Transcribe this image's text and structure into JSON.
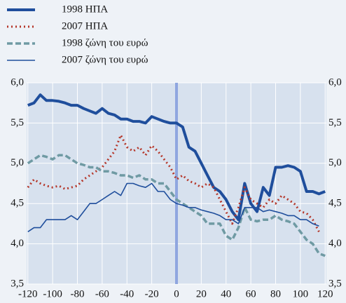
{
  "chart_data": {
    "type": "line",
    "x": [
      -120,
      -115,
      -110,
      -105,
      -100,
      -95,
      -90,
      -85,
      -80,
      -75,
      -70,
      -65,
      -60,
      -55,
      -50,
      -45,
      -40,
      -35,
      -30,
      -25,
      -20,
      -15,
      -10,
      -5,
      0,
      5,
      10,
      15,
      20,
      25,
      30,
      35,
      40,
      45,
      50,
      55,
      60,
      65,
      70,
      75,
      80,
      85,
      90,
      95,
      100,
      105,
      110,
      115,
      120
    ],
    "series": [
      {
        "name": "1998 ΗΠΑ",
        "color": "#1f4e9c",
        "width": 4,
        "dash": "none",
        "values": [
          5.72,
          5.75,
          5.85,
          5.78,
          5.78,
          5.77,
          5.75,
          5.72,
          5.72,
          5.68,
          5.65,
          5.62,
          5.68,
          5.62,
          5.6,
          5.55,
          5.55,
          5.52,
          5.52,
          5.5,
          5.58,
          5.55,
          5.52,
          5.5,
          5.5,
          5.45,
          5.2,
          5.15,
          5.0,
          4.85,
          4.7,
          4.65,
          4.55,
          4.4,
          4.3,
          4.75,
          4.5,
          4.4,
          4.7,
          4.6,
          4.95,
          4.95,
          4.97,
          4.95,
          4.9,
          4.65,
          4.65,
          4.62,
          4.65
        ]
      },
      {
        "name": "2007 ΗΠΑ",
        "color": "#b5372a",
        "width": 3,
        "dash": "2 4",
        "values": [
          4.7,
          4.8,
          4.75,
          4.72,
          4.7,
          4.72,
          4.68,
          4.7,
          4.72,
          4.8,
          4.85,
          4.9,
          4.95,
          5.05,
          5.15,
          5.35,
          5.2,
          5.15,
          5.2,
          5.1,
          5.22,
          5.15,
          5.05,
          4.95,
          4.8,
          4.85,
          4.78,
          4.75,
          4.7,
          4.75,
          4.7,
          4.55,
          4.4,
          4.25,
          4.45,
          4.7,
          4.55,
          4.5,
          4.45,
          4.55,
          4.5,
          4.6,
          4.55,
          4.5,
          4.4,
          4.38,
          4.3,
          4.15,
          null
        ]
      },
      {
        "name": "1998 ζώνη του ευρώ",
        "color": "#6f9aa3",
        "width": 3.5,
        "dash": "8 4",
        "values": [
          5.0,
          5.05,
          5.1,
          5.08,
          5.05,
          5.1,
          5.1,
          5.05,
          5.0,
          4.98,
          4.95,
          4.95,
          4.9,
          4.9,
          4.88,
          4.85,
          4.85,
          4.82,
          4.85,
          4.8,
          4.8,
          4.75,
          4.75,
          4.65,
          4.55,
          4.5,
          4.45,
          4.4,
          4.35,
          4.25,
          4.25,
          4.25,
          4.1,
          4.05,
          4.2,
          4.45,
          4.3,
          4.28,
          4.3,
          4.3,
          4.35,
          4.3,
          4.28,
          4.25,
          4.15,
          4.05,
          4.0,
          3.88,
          3.85
        ]
      },
      {
        "name": "2007 ζώνη του ευρώ",
        "color": "#1f4e9c",
        "width": 1.6,
        "dash": "none",
        "values": [
          4.15,
          4.2,
          4.2,
          4.3,
          4.3,
          4.3,
          4.3,
          4.35,
          4.3,
          4.4,
          4.5,
          4.5,
          4.55,
          4.6,
          4.65,
          4.6,
          4.75,
          4.75,
          4.72,
          4.7,
          4.75,
          4.65,
          4.65,
          4.55,
          4.5,
          4.48,
          4.45,
          4.45,
          4.42,
          4.4,
          4.38,
          4.35,
          4.3,
          4.3,
          4.25,
          4.45,
          4.45,
          4.45,
          4.4,
          4.42,
          4.4,
          4.38,
          4.35,
          4.35,
          4.3,
          4.3,
          4.25,
          4.22,
          null
        ]
      }
    ],
    "xlim": [
      -121,
      121
    ],
    "xticks": [
      -120,
      -100,
      -80,
      -60,
      -40,
      -20,
      0,
      20,
      40,
      60,
      80,
      100,
      120
    ],
    "ylim": [
      3.5,
      6.0
    ],
    "yticks": [
      {
        "value": 3.5,
        "label": "3,5"
      },
      {
        "value": 4.0,
        "label": "4,0"
      },
      {
        "value": 4.5,
        "label": "4,5"
      },
      {
        "value": 5.0,
        "label": "5,0"
      },
      {
        "value": 5.5,
        "label": "5,5"
      },
      {
        "value": 6.0,
        "label": "6,0"
      }
    ],
    "grid": true
  }
}
